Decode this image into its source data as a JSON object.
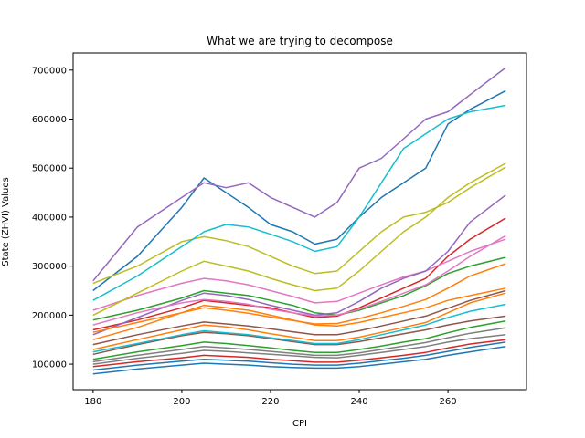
{
  "chart_data": {
    "type": "line",
    "title": "What we are trying to decompose",
    "xlabel": "CPI",
    "ylabel": "State (ZHVI) Values",
    "xlim": [
      175.5,
      277.7
    ],
    "ylim": [
      48000,
      735000
    ],
    "xticks": [
      180,
      200,
      220,
      240,
      260
    ],
    "xtick_labels": [
      "180",
      "200",
      "220",
      "240",
      "260"
    ],
    "yticks": [
      100000,
      200000,
      300000,
      400000,
      500000,
      600000,
      700000
    ],
    "ytick_labels": [
      "100000",
      "200000",
      "300000",
      "400000",
      "500000",
      "600000",
      "700000"
    ],
    "grid": false,
    "legend": "none",
    "palette": [
      "#1f77b4",
      "#ff7f0e",
      "#2ca02c",
      "#d62728",
      "#9467bd",
      "#8c564b",
      "#e377c2",
      "#7f7f7f",
      "#bcbd22",
      "#17becf"
    ],
    "x": [
      180,
      190,
      200,
      205,
      210,
      215,
      220,
      225,
      230,
      235,
      240,
      245,
      250,
      255,
      260,
      265,
      273
    ],
    "series": [
      {
        "values": [
          250000,
          320000,
          420000,
          480000,
          450000,
          420000,
          385000,
          370000,
          345000,
          355000,
          400000,
          440000,
          470000,
          500000,
          590000,
          620000,
          658000
        ]
      },
      {
        "values": [
          150000,
          175000,
          205000,
          220000,
          215000,
          210000,
          200000,
          190000,
          180000,
          178000,
          185000,
          195000,
          205000,
          215000,
          230000,
          240000,
          255000
        ]
      },
      {
        "values": [
          190000,
          210000,
          235000,
          250000,
          245000,
          240000,
          230000,
          220000,
          205000,
          200000,
          210000,
          225000,
          240000,
          260000,
          285000,
          300000,
          318000
        ]
      },
      {
        "values": [
          170000,
          190000,
          215000,
          230000,
          225000,
          220000,
          215000,
          205000,
          195000,
          198000,
          215000,
          235000,
          255000,
          275000,
          320000,
          355000,
          398000
        ]
      },
      {
        "values": [
          270000,
          380000,
          440000,
          470000,
          460000,
          470000,
          440000,
          420000,
          400000,
          430000,
          500000,
          520000,
          560000,
          600000,
          615000,
          650000,
          705000
        ]
      },
      {
        "values": [
          120000,
          140000,
          158000,
          165000,
          162000,
          158000,
          152000,
          146000,
          140000,
          140000,
          146000,
          154000,
          162000,
          170000,
          180000,
          188000,
          198000
        ]
      },
      {
        "values": [
          210000,
          240000,
          265000,
          275000,
          270000,
          262000,
          250000,
          238000,
          225000,
          228000,
          245000,
          262000,
          278000,
          290000,
          310000,
          330000,
          355000
        ]
      },
      {
        "values": [
          100000,
          112000,
          122000,
          128000,
          126000,
          123000,
          120000,
          117000,
          114000,
          113000,
          118000,
          124000,
          130000,
          136000,
          145000,
          152000,
          160000
        ]
      },
      {
        "values": [
          265000,
          300000,
          350000,
          360000,
          352000,
          340000,
          320000,
          300000,
          285000,
          290000,
          330000,
          370000,
          400000,
          410000,
          430000,
          460000,
          502000
        ]
      },
      {
        "values": [
          230000,
          280000,
          340000,
          370000,
          385000,
          380000,
          365000,
          350000,
          330000,
          340000,
          400000,
          470000,
          540000,
          570000,
          600000,
          615000,
          628000
        ]
      },
      {
        "values": [
          80000,
          90000,
          98000,
          102000,
          100000,
          98000,
          95000,
          93000,
          92000,
          92000,
          95000,
          100000,
          105000,
          110000,
          118000,
          125000,
          136000
        ]
      },
      {
        "values": [
          130000,
          150000,
          170000,
          180000,
          176000,
          170000,
          162000,
          155000,
          148000,
          148000,
          155000,
          165000,
          175000,
          185000,
          205000,
          225000,
          245000
        ]
      },
      {
        "values": [
          110000,
          125000,
          138000,
          145000,
          142000,
          138000,
          133000,
          128000,
          124000,
          124000,
          130000,
          137000,
          145000,
          152000,
          164000,
          175000,
          188000
        ]
      },
      {
        "values": [
          95000,
          105000,
          113000,
          118000,
          116000,
          114000,
          110000,
          107000,
          104000,
          104000,
          108000,
          113000,
          118000,
          124000,
          133000,
          141000,
          150000
        ]
      },
      {
        "values": [
          160000,
          195000,
          230000,
          245000,
          240000,
          232000,
          220000,
          210000,
          200000,
          205000,
          228000,
          255000,
          275000,
          290000,
          330000,
          390000,
          445000
        ]
      },
      {
        "values": [
          140000,
          160000,
          178000,
          186000,
          182000,
          178000,
          172000,
          166000,
          160000,
          160000,
          168000,
          178000,
          188000,
          198000,
          214000,
          230000,
          250000
        ]
      },
      {
        "values": [
          180000,
          205000,
          225000,
          232000,
          228000,
          222000,
          212000,
          205000,
          198000,
          200000,
          212000,
          228000,
          245000,
          262000,
          290000,
          320000,
          362000
        ]
      },
      {
        "values": [
          105000,
          118000,
          130000,
          136000,
          133000,
          130000,
          126000,
          122000,
          118000,
          118000,
          123000,
          130000,
          137000,
          144000,
          154000,
          163000,
          174000
        ]
      },
      {
        "values": [
          200000,
          245000,
          290000,
          310000,
          300000,
          290000,
          275000,
          262000,
          250000,
          255000,
          290000,
          330000,
          370000,
          400000,
          440000,
          470000,
          510000
        ]
      },
      {
        "values": [
          125000,
          142000,
          160000,
          168000,
          164000,
          160000,
          154000,
          148000,
          142000,
          142000,
          150000,
          160000,
          170000,
          180000,
          195000,
          208000,
          222000
        ]
      },
      {
        "values": [
          88000,
          98000,
          106000,
          110000,
          108000,
          106000,
          103000,
          100000,
          98000,
          98000,
          102000,
          107000,
          112000,
          118000,
          126000,
          134000,
          145000
        ]
      },
      {
        "values": [
          165000,
          185000,
          205000,
          215000,
          210000,
          204000,
          196000,
          189000,
          182000,
          183000,
          193000,
          205000,
          218000,
          232000,
          255000,
          280000,
          305000
        ]
      }
    ]
  }
}
